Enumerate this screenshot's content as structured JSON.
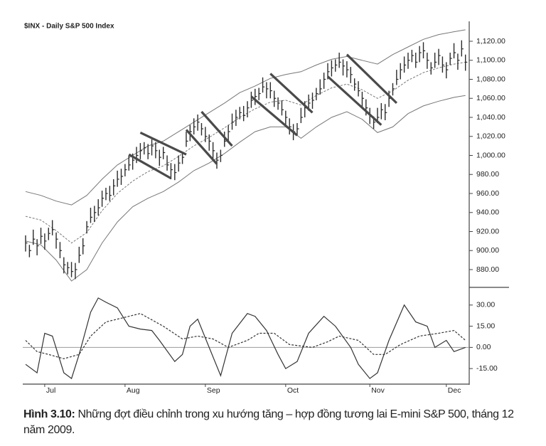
{
  "chart_data": [
    {
      "type": "hlc",
      "title": "$INX - Daily  S&P 500 Index",
      "categories": [
        null,
        null,
        null,
        null,
        null,
        "Jul",
        null,
        null,
        null,
        null,
        null,
        null,
        null,
        null,
        null,
        null,
        null,
        null,
        null,
        null,
        null,
        null,
        null,
        null,
        null,
        null,
        "Aug",
        null,
        null,
        null,
        null,
        null,
        null,
        null,
        null,
        null,
        null,
        null,
        null,
        null,
        null,
        null,
        null,
        null,
        null,
        null,
        null,
        "Sep",
        null,
        null,
        null,
        null,
        null,
        null,
        null,
        null,
        null,
        null,
        null,
        null,
        null,
        null,
        null,
        null,
        null,
        null,
        null,
        null,
        "Oct",
        null,
        null,
        null,
        null,
        null,
        null,
        null,
        null,
        null,
        null,
        null,
        null,
        null,
        null,
        null,
        null,
        null,
        null,
        null,
        null,
        null,
        "Nov",
        null,
        null,
        null,
        null,
        null,
        null,
        null,
        null,
        null,
        null,
        null,
        null,
        null,
        null,
        null,
        null,
        null,
        null,
        null,
        "Dec",
        null,
        null,
        null,
        null,
        null
      ],
      "high": [
        916,
        906,
        922,
        912,
        924,
        918,
        924,
        932,
        919,
        909,
        893,
        888,
        888,
        887,
        904,
        913,
        931,
        945,
        947,
        954,
        963,
        966,
        968,
        975,
        984,
        986,
        991,
        1000,
        1002,
        1009,
        1013,
        1014,
        1012,
        1017,
        1014,
        1006,
        1009,
        1000,
        992,
        991,
        1000,
        1004,
        1025,
        1032,
        1039,
        1043,
        1034,
        1030,
        1022,
        1014,
        1003,
        1006,
        1025,
        1032,
        1044,
        1048,
        1051,
        1052,
        1057,
        1067,
        1070,
        1071,
        1082,
        1077,
        1077,
        1068,
        1061,
        1058,
        1047,
        1039,
        1033,
        1034,
        1050,
        1057,
        1064,
        1066,
        1071,
        1080,
        1087,
        1097,
        1100,
        1101,
        1108,
        1101,
        1099,
        1093,
        1081,
        1078,
        1067,
        1059,
        1050,
        1041,
        1050,
        1055,
        1054,
        1068,
        1076,
        1090,
        1097,
        1104,
        1108,
        1111,
        1108,
        1115,
        1119,
        1108,
        1098,
        1108,
        1112,
        1104,
        1098,
        1108,
        1118,
        1107,
        1121,
        1106
      ],
      "low": [
        899,
        893,
        906,
        895,
        907,
        901,
        911,
        916,
        902,
        892,
        876,
        875,
        872,
        870,
        887,
        896,
        918,
        929,
        930,
        937,
        946,
        953,
        952,
        958,
        967,
        969,
        978,
        984,
        985,
        992,
        996,
        1001,
        996,
        1000,
        997,
        989,
        996,
        984,
        975,
        974,
        983,
        991,
        1009,
        1015,
        1022,
        1026,
        1021,
        1014,
        1005,
        997,
        986,
        993,
        1009,
        1015,
        1027,
        1031,
        1038,
        1036,
        1040,
        1050,
        1053,
        1058,
        1066,
        1060,
        1060,
        1051,
        1048,
        1042,
        1030,
        1022,
        1016,
        1021,
        1034,
        1040,
        1047,
        1049,
        1058,
        1064,
        1070,
        1080,
        1083,
        1088,
        1092,
        1084,
        1082,
        1076,
        1068,
        1062,
        1050,
        1042,
        1033,
        1028,
        1034,
        1038,
        1037,
        1051,
        1063,
        1074,
        1080,
        1087,
        1091,
        1098,
        1092,
        1098,
        1102,
        1091,
        1085,
        1092,
        1095,
        1087,
        1081,
        1095,
        1102,
        1090,
        1104,
        1089
      ],
      "close": [
        908,
        900,
        912,
        905,
        915,
        910,
        918,
        922,
        912,
        900,
        885,
        882,
        878,
        880,
        895,
        905,
        925,
        935,
        940,
        945,
        955,
        960,
        958,
        968,
        975,
        978,
        985,
        990,
        995,
        1000,
        1005,
        1008,
        1002,
        1010,
        1005,
        998,
        1003,
        990,
        985,
        982,
        992,
        998,
        1015,
        1025,
        1030,
        1035,
        1028,
        1020,
        1015,
        1005,
        995,
        1000,
        1015,
        1025,
        1035,
        1040,
        1045,
        1042,
        1050,
        1058,
        1062,
        1065,
        1072,
        1070,
        1068,
        1060,
        1055,
        1048,
        1040,
        1030,
        1025,
        1028,
        1040,
        1050,
        1055,
        1058,
        1065,
        1070,
        1080,
        1088,
        1092,
        1095,
        1098,
        1094,
        1090,
        1085,
        1075,
        1068,
        1060,
        1050,
        1042,
        1035,
        1040,
        1048,
        1045,
        1060,
        1070,
        1080,
        1090,
        1095,
        1100,
        1105,
        1098,
        1108,
        1110,
        1100,
        1092,
        1098,
        1105,
        1095,
        1090,
        1102,
        1108,
        1100,
        1112,
        1098
      ],
      "bar_color": "#2b2b2b",
      "lines": [
        {
          "x": [
            0,
            4,
            8,
            12,
            16,
            20,
            24,
            28,
            32,
            36,
            40,
            44,
            48,
            52,
            56,
            60,
            64,
            68,
            72,
            76,
            80,
            84,
            88,
            92,
            96,
            100,
            104,
            108,
            112,
            115
          ],
          "values": [
            962,
            958,
            952,
            948,
            958,
            975,
            990,
            1000,
            1010,
            1015,
            1025,
            1035,
            1045,
            1055,
            1066,
            1073,
            1081,
            1085,
            1088,
            1095,
            1101,
            1104,
            1100,
            1096,
            1106,
            1114,
            1122,
            1127,
            1130,
            1132
          ],
          "color": "#777777",
          "dash": false
        },
        {
          "x": [
            0,
            4,
            8,
            12,
            16,
            20,
            24,
            28,
            32,
            36,
            40,
            44,
            48,
            52,
            56,
            60,
            64,
            68,
            72,
            76,
            80,
            84,
            88,
            92,
            96,
            100,
            104,
            108,
            112,
            115
          ],
          "values": [
            936,
            932,
            921,
            908,
            919,
            942,
            960,
            973,
            983,
            989,
            999,
            1010,
            1019,
            1029,
            1040,
            1049,
            1056,
            1058,
            1053,
            1063,
            1071,
            1075,
            1069,
            1060,
            1068,
            1079,
            1087,
            1092,
            1096,
            1098
          ],
          "color": "#777777",
          "dash": true
        },
        {
          "x": [
            0,
            4,
            8,
            12,
            16,
            20,
            24,
            28,
            32,
            36,
            40,
            44,
            48,
            52,
            56,
            60,
            64,
            68,
            72,
            76,
            80,
            84,
            88,
            92,
            96,
            100,
            104,
            108,
            112,
            115
          ],
          "values": [
            910,
            906,
            890,
            868,
            880,
            908,
            930,
            946,
            955,
            962,
            972,
            984,
            992,
            1002,
            1014,
            1025,
            1030,
            1030,
            1018,
            1030,
            1040,
            1046,
            1038,
            1024,
            1030,
            1044,
            1052,
            1057,
            1061,
            1063
          ],
          "color": "#777777",
          "dash": false
        }
      ],
      "trendlines": [
        {
          "x": [
            30,
            42
          ],
          "values": [
            1024,
            1001
          ]
        },
        {
          "x": [
            27,
            38
          ],
          "values": [
            1001,
            976
          ]
        },
        {
          "x": [
            46,
            54
          ],
          "values": [
            1046,
            1010
          ]
        },
        {
          "x": [
            42,
            50
          ],
          "values": [
            1027,
            991
          ]
        },
        {
          "x": [
            64,
            75
          ],
          "values": [
            1086,
            1045
          ]
        },
        {
          "x": [
            59,
            71
          ],
          "values": [
            1062,
            1021
          ]
        },
        {
          "x": [
            84,
            97
          ],
          "values": [
            1106,
            1055
          ]
        },
        {
          "x": [
            79,
            93
          ],
          "values": [
            1083,
            1032
          ]
        }
      ],
      "trendline_color": "#4a4a4a",
      "ylim": [
        860,
        1140
      ],
      "yticks": [
        {
          "value": 880,
          "label": "880.00"
        },
        {
          "value": 900,
          "label": "900.00"
        },
        {
          "value": 920,
          "label": "920.00"
        },
        {
          "value": 940,
          "label": "940.00"
        },
        {
          "value": 960,
          "label": "960.00"
        },
        {
          "value": 980,
          "label": "980.00"
        },
        {
          "value": 1000,
          "label": "1,000.00"
        },
        {
          "value": 1020,
          "label": "1,020.00"
        },
        {
          "value": 1040,
          "label": "1,040.00"
        },
        {
          "value": 1060,
          "label": "1,060.00"
        },
        {
          "value": 1080,
          "label": "1,080.00"
        },
        {
          "value": 1100,
          "label": "1,100.00"
        },
        {
          "value": 1120,
          "label": "1,120.00"
        }
      ]
    },
    {
      "type": "line",
      "series": [
        {
          "x": [
            0,
            3,
            5,
            7,
            10,
            12,
            14,
            17,
            19,
            21,
            24,
            27,
            30,
            33,
            35,
            39,
            41,
            43,
            45,
            48,
            51,
            54,
            58,
            60,
            63,
            66,
            68,
            71,
            74,
            78,
            81,
            85,
            87,
            90,
            92,
            95,
            99,
            102,
            105,
            107,
            110,
            112,
            115
          ],
          "values": [
            -12,
            -18,
            10,
            8,
            -18,
            -22,
            -5,
            25,
            35,
            32,
            28,
            15,
            13,
            12,
            5,
            -10,
            -5,
            15,
            20,
            0,
            -20,
            10,
            24,
            22,
            12,
            -5,
            -15,
            -10,
            10,
            22,
            15,
            0,
            -12,
            -22,
            -18,
            5,
            30,
            18,
            15,
            0,
            5,
            -3,
            0
          ],
          "color": "#333333",
          "dash": false
        },
        {
          "x": [
            0,
            3,
            6,
            10,
            14,
            17,
            21,
            27,
            30,
            36,
            41,
            45,
            49,
            53,
            58,
            61,
            65,
            69,
            75,
            79,
            82,
            87,
            91,
            94,
            98,
            103,
            108,
            112,
            115
          ],
          "values": [
            5,
            -3,
            -5,
            -8,
            -5,
            8,
            18,
            22,
            24,
            15,
            6,
            8,
            6,
            0,
            5,
            10,
            10,
            2,
            0,
            4,
            8,
            5,
            -5,
            -5,
            2,
            8,
            10,
            12,
            5
          ],
          "color": "#333333",
          "dash": true
        }
      ],
      "ylim": [
        -26,
        42
      ],
      "yticks": [
        {
          "value": 30,
          "label": "30.00"
        },
        {
          "value": 15,
          "label": "15.00"
        },
        {
          "value": 0,
          "label": "0.00"
        },
        {
          "value": -15,
          "label": "-15.00"
        }
      ],
      "zero_line": true
    }
  ],
  "caption": {
    "label": "Hình 3.10:",
    "text": "Những đợt điều chỉnh trong xu hướng tăng – hợp đồng tương lai E-mini S&P 500, tháng 12 năm 2009."
  }
}
